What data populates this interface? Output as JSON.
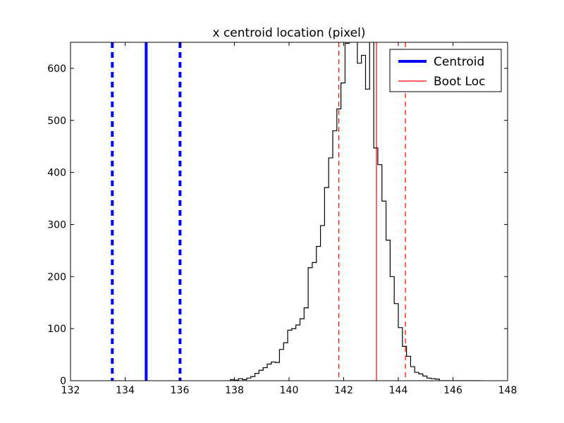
{
  "chart_data": {
    "type": "histogram",
    "title": "x centroid location (pixel)",
    "xlim": [
      132,
      148
    ],
    "ylim": [
      0,
      650
    ],
    "xticks": [
      132,
      134,
      136,
      138,
      140,
      142,
      144,
      146,
      148
    ],
    "yticks": [
      0,
      100,
      200,
      300,
      400,
      500,
      600
    ],
    "grid": false,
    "legend": {
      "placement": "top-right",
      "entries": [
        {
          "label": "Centroid",
          "color": "#0000ff",
          "style": "solid-thick"
        },
        {
          "label": "Boot Loc",
          "color": "#ff0000",
          "style": "solid-thin"
        }
      ]
    },
    "histogram": {
      "color": "#000000",
      "bin_edges": [
        137.85,
        138.0,
        138.15,
        138.3,
        138.45,
        138.6,
        138.75,
        138.9,
        139.05,
        139.2,
        139.35,
        139.5,
        139.65,
        139.8,
        139.95,
        140.1,
        140.25,
        140.4,
        140.55,
        140.7,
        140.85,
        141.0,
        141.15,
        141.3,
        141.45,
        141.6,
        141.75,
        141.9,
        142.05,
        142.2,
        142.35,
        142.5,
        142.65,
        142.8,
        142.95,
        143.1,
        143.25,
        143.4,
        143.55,
        143.7,
        143.85,
        144.0,
        144.15,
        144.3,
        144.45,
        144.6,
        144.75,
        144.9,
        145.05,
        145.2,
        145.35,
        145.5,
        145.65,
        145.8,
        145.95,
        146.1,
        146.25,
        146.4,
        146.55,
        146.7,
        146.85,
        147.0
      ],
      "counts": [
        2,
        1,
        4,
        2,
        5,
        8,
        14,
        20,
        25,
        32,
        36,
        35,
        60,
        73,
        97,
        100,
        107,
        119,
        140,
        217,
        227,
        258,
        298,
        371,
        428,
        480,
        522,
        572,
        648,
        800,
        720,
        610,
        625,
        560,
        720,
        447,
        415,
        345,
        270,
        200,
        148,
        102,
        66,
        47,
        27,
        16,
        13,
        9,
        5,
        4,
        3,
        0,
        0,
        0,
        0,
        0,
        0,
        0,
        0,
        0,
        0
      ]
    },
    "vertical_lines": [
      {
        "name": "Centroid",
        "x": 134.77,
        "color": "#0000ff",
        "style": "solid",
        "width": "thick"
      },
      {
        "name": "Centroid-lower",
        "x": 133.53,
        "color": "#0000ff",
        "style": "dashed",
        "width": "thick"
      },
      {
        "name": "Centroid-upper",
        "x": 136.01,
        "color": "#0000ff",
        "style": "dashed",
        "width": "thick"
      },
      {
        "name": "Boot Loc",
        "x": 143.2,
        "color": "#ff0000",
        "style": "solid",
        "width": "thin"
      },
      {
        "name": "Boot Loc-lower",
        "x": 141.82,
        "color": "#ff0000",
        "style": "dashed",
        "width": "thin"
      },
      {
        "name": "Boot Loc-upper",
        "x": 144.26,
        "color": "#ff0000",
        "style": "dashed",
        "width": "thin"
      }
    ]
  }
}
